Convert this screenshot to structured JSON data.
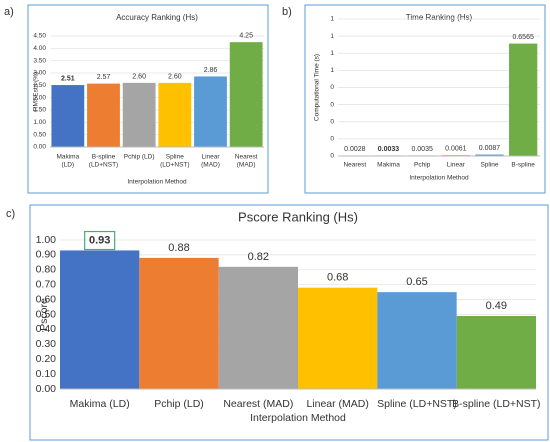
{
  "chart_data": [
    {
      "type": "bar",
      "panel": "a)",
      "title": "Accuracy Ranking (Hs)",
      "xlabel": "Interpolation Method",
      "ylabel": "RMSEstd (%)",
      "categories": [
        [
          "Makima",
          "(LD)"
        ],
        [
          "B-spline",
          "(LD+NST)"
        ],
        [
          "Pchip (LD)"
        ],
        [
          "Spline",
          "(LD+NST)"
        ],
        [
          "Linear",
          "(MAD)"
        ],
        [
          "Nearest",
          "(MAD)"
        ]
      ],
      "values": [
        2.51,
        2.57,
        2.6,
        2.6,
        2.86,
        4.25
      ],
      "value_labels": [
        "2.51",
        "2.57",
        "2.60",
        "2.60",
        "2.86",
        "4.25"
      ],
      "colors": [
        "#4472c4",
        "#ed7d31",
        "#a5a5a5",
        "#ffc000",
        "#5b9bd5",
        "#70ad47"
      ],
      "highlight_index": 0,
      "ylim": [
        0,
        4.5
      ],
      "yticks": [
        {
          "value": 0,
          "label": "0.00"
        },
        {
          "value": 0.5,
          "label": "0.50"
        },
        {
          "value": 1,
          "label": "1.00"
        },
        {
          "value": 1.5,
          "label": "1.50"
        },
        {
          "value": 2,
          "label": "2.00"
        },
        {
          "value": 2.5,
          "label": "2.50"
        },
        {
          "value": 3,
          "label": "3.00"
        },
        {
          "value": 3.5,
          "label": "3.50"
        },
        {
          "value": 4,
          "label": "4.00"
        },
        {
          "value": 4.5,
          "label": "4.50"
        }
      ]
    },
    {
      "type": "bar",
      "panel": "b)",
      "title": "Time Ranking (Hs)",
      "xlabel": "Interpolation Method",
      "ylabel": "Computational Time (s)",
      "categories": [
        [
          "Nearest"
        ],
        [
          "Makima"
        ],
        [
          "Pchip"
        ],
        [
          "Linear"
        ],
        [
          "Spline"
        ],
        [
          "B-spline"
        ]
      ],
      "values": [
        0.0028,
        0.0033,
        0.0035,
        0.0061,
        0.0087,
        0.6565
      ],
      "colors": [
        "#70ad47",
        "#4472c4",
        "#a5a5a5",
        "#ffc000",
        "#5b9bd5",
        "#70ad47"
      ],
      "highlight_index": 1,
      "ylim": [
        0,
        0.8
      ],
      "yticks": [
        {
          "value": 0,
          "label": "0"
        },
        {
          "value": 0.1,
          "label": "0"
        },
        {
          "value": 0.2,
          "label": "0"
        },
        {
          "value": 0.3,
          "label": "0"
        },
        {
          "value": 0.4,
          "label": "0"
        },
        {
          "value": 0.5,
          "label": "1"
        },
        {
          "value": 0.6,
          "label": "1"
        },
        {
          "value": 0.7,
          "label": "1"
        },
        {
          "value": 0.8,
          "label": "1"
        }
      ]
    },
    {
      "type": "bar",
      "panel": "c)",
      "title": "Pscore Ranking (Hs)",
      "xlabel": "Interpolation Method",
      "ylabel": "Pscore",
      "categories": [
        [
          "Makima (LD)"
        ],
        [
          "Pchip (LD)"
        ],
        [
          "Nearest (MAD)"
        ],
        [
          "Linear (MAD)"
        ],
        [
          "Spline (LD+NST)"
        ],
        [
          "B-spline (LD+NST)"
        ]
      ],
      "values": [
        0.93,
        0.88,
        0.82,
        0.68,
        0.65,
        0.49
      ],
      "colors": [
        "#4472c4",
        "#ed7d31",
        "#a5a5a5",
        "#ffc000",
        "#5b9bd5",
        "#70ad47"
      ],
      "highlight_index": 0,
      "ylim": [
        0,
        1
      ],
      "yticks": [
        {
          "value": 0,
          "label": "0.00"
        },
        {
          "value": 0.1,
          "label": "0.10"
        },
        {
          "value": 0.2,
          "label": "0.20"
        },
        {
          "value": 0.3,
          "label": "0.30"
        },
        {
          "value": 0.4,
          "label": "0.40"
        },
        {
          "value": 0.5,
          "label": "0.50"
        },
        {
          "value": 0.6,
          "label": "0.60"
        },
        {
          "value": 0.7,
          "label": "0.70"
        },
        {
          "value": 0.8,
          "label": "0.80"
        },
        {
          "value": 0.9,
          "label": "0.90"
        },
        {
          "value": 1,
          "label": "1.00"
        }
      ]
    }
  ]
}
